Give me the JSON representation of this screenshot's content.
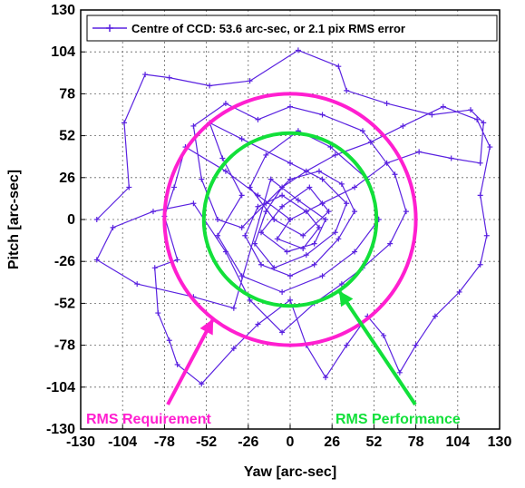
{
  "chart_data": {
    "type": "line",
    "xlabel": "Yaw [arc-sec]",
    "ylabel": "Pitch [arc-sec]",
    "xlim": [
      -130,
      130
    ],
    "ylim": [
      -130,
      130
    ],
    "xticks": [
      -130,
      -104,
      -78,
      -52,
      -26,
      0,
      26,
      52,
      78,
      104,
      130
    ],
    "yticks": [
      -130,
      -104,
      -78,
      -52,
      -26,
      0,
      26,
      52,
      78,
      104,
      130
    ],
    "xtick_labels": [
      "-130",
      "-104",
      "-78",
      "-52",
      "-26",
      "0",
      "26",
      "52",
      "78",
      "104",
      "130"
    ],
    "ytick_labels": [
      "-130",
      "-104",
      "-78",
      "-52",
      "-26",
      "0",
      "26",
      "52",
      "78",
      "104",
      "130"
    ],
    "grid": true,
    "legend_position": "top-right",
    "series": [
      {
        "name": "Centre of CCD: 53.6 arc-sec, or 2.1 pix RMS error",
        "color": "#5a22e0",
        "marker": "plus",
        "points": [
          [
            -120,
            0
          ],
          [
            -100,
            20
          ],
          [
            -103,
            60
          ],
          [
            -90,
            90
          ],
          [
            -75,
            88
          ],
          [
            -50,
            83
          ],
          [
            -25,
            86
          ],
          [
            5,
            105
          ],
          [
            30,
            95
          ],
          [
            35,
            80
          ],
          [
            60,
            72
          ],
          [
            88,
            65
          ],
          [
            112,
            68
          ],
          [
            120,
            60
          ],
          [
            118,
            35
          ],
          [
            100,
            38
          ],
          [
            80,
            42
          ],
          [
            60,
            35
          ],
          [
            40,
            20
          ],
          [
            20,
            10
          ],
          [
            0,
            0
          ],
          [
            -20,
            15
          ],
          [
            -40,
            30
          ],
          [
            -65,
            45
          ],
          [
            -72,
            20
          ],
          [
            -78,
            2
          ],
          [
            -70,
            -25
          ],
          [
            -84,
            -30
          ],
          [
            -82,
            -58
          ],
          [
            -75,
            -75
          ],
          [
            -70,
            -90
          ],
          [
            -55,
            -102
          ],
          [
            -35,
            -80
          ],
          [
            -20,
            -65
          ],
          [
            0,
            -50
          ],
          [
            10,
            -78
          ],
          [
            22,
            -98
          ],
          [
            35,
            -78
          ],
          [
            48,
            -60
          ],
          [
            58,
            -72
          ],
          [
            68,
            -95
          ],
          [
            78,
            -78
          ],
          [
            90,
            -60
          ],
          [
            105,
            -45
          ],
          [
            118,
            -28
          ],
          [
            122,
            -10
          ],
          [
            118,
            15
          ],
          [
            124,
            45
          ],
          [
            116,
            62
          ],
          [
            95,
            70
          ],
          [
            70,
            58
          ],
          [
            50,
            48
          ],
          [
            28,
            40
          ],
          [
            10,
            30
          ],
          [
            -5,
            20
          ],
          [
            -15,
            5
          ],
          [
            -22,
            -15
          ],
          [
            -10,
            -30
          ],
          [
            10,
            -22
          ],
          [
            28,
            -8
          ],
          [
            35,
            10
          ],
          [
            20,
            25
          ],
          [
            0,
            35
          ],
          [
            -30,
            50
          ],
          [
            -50,
            60
          ],
          [
            -42,
            38
          ],
          [
            -30,
            15
          ],
          [
            -45,
            -10
          ],
          [
            -30,
            -35
          ],
          [
            -5,
            -45
          ],
          [
            20,
            -35
          ],
          [
            40,
            -20
          ],
          [
            55,
            0
          ],
          [
            48,
            25
          ],
          [
            25,
            45
          ],
          [
            5,
            55
          ],
          [
            -15,
            40
          ],
          [
            -25,
            20
          ],
          [
            -10,
            0
          ],
          [
            8,
            -10
          ],
          [
            24,
            5
          ],
          [
            12,
            20
          ],
          [
            -5,
            8
          ],
          [
            -18,
            -8
          ],
          [
            -2,
            -20
          ],
          [
            15,
            -15
          ],
          [
            22,
            0
          ],
          [
            5,
            12
          ],
          [
            -12,
            25
          ],
          [
            -35,
            -55
          ],
          [
            -60,
            -48
          ],
          [
            -95,
            -40
          ],
          [
            -120,
            -25
          ],
          [
            -110,
            -5
          ],
          [
            -85,
            5
          ],
          [
            -60,
            10
          ],
          [
            -40,
            -20
          ],
          [
            -25,
            -50
          ],
          [
            -5,
            -70
          ],
          [
            15,
            -52
          ],
          [
            32,
            -40
          ],
          [
            45,
            -30
          ],
          [
            62,
            -15
          ],
          [
            72,
            5
          ],
          [
            65,
            28
          ],
          [
            45,
            55
          ],
          [
            20,
            65
          ],
          [
            0,
            70
          ],
          [
            -20,
            62
          ],
          [
            -40,
            72
          ],
          [
            -60,
            58
          ],
          [
            -55,
            25
          ],
          [
            -45,
            0
          ],
          [
            -30,
            -5
          ],
          [
            -15,
            10
          ],
          [
            0,
            25
          ],
          [
            18,
            30
          ],
          [
            32,
            22
          ],
          [
            40,
            5
          ],
          [
            30,
            -12
          ],
          [
            15,
            -28
          ],
          [
            0,
            -35
          ],
          [
            -18,
            -28
          ],
          [
            -28,
            -10
          ],
          [
            -20,
            8
          ],
          [
            -5,
            15
          ],
          [
            10,
            5
          ],
          [
            18,
            -5
          ],
          [
            8,
            -18
          ],
          [
            -8,
            -12
          ],
          [
            0,
            0
          ]
        ]
      }
    ],
    "circles": [
      {
        "name": "RMS Requirement",
        "radius": 78,
        "color": "#ff1fd0",
        "label": "RMS Requirement"
      },
      {
        "name": "RMS Performance",
        "radius": 53.6,
        "color": "#12e03a",
        "label": "RMS Performance"
      }
    ]
  }
}
